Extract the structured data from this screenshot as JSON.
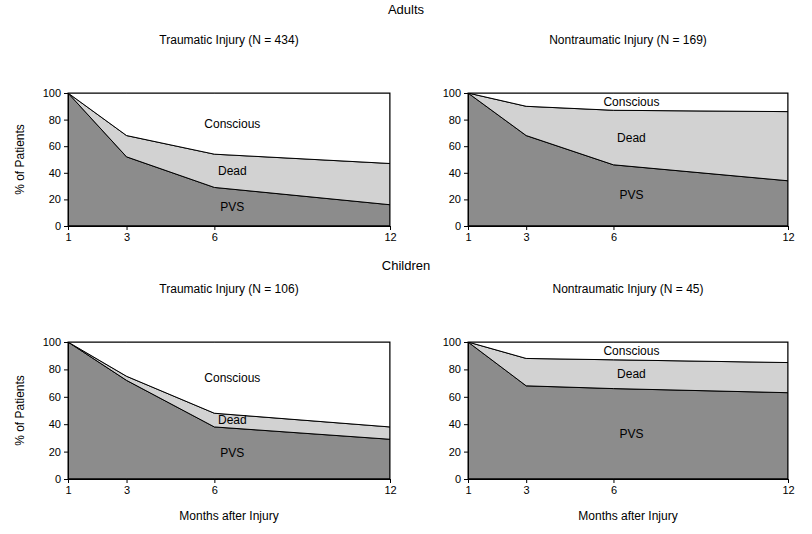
{
  "row_titles": [
    "Adults",
    "Children"
  ],
  "chart_data": [
    {
      "type": "area",
      "stacked": true,
      "title": "Traumatic Injury (N = 434)",
      "ylabel": "% of Patients",
      "x": [
        1,
        3,
        6,
        12
      ],
      "xlim": [
        1,
        12
      ],
      "xticks": [
        1,
        3,
        6,
        12
      ],
      "ylim": [
        0,
        100
      ],
      "yticks": [
        0,
        20,
        40,
        60,
        80,
        100
      ],
      "series": [
        {
          "name": "PVS",
          "color": "#8c8c8c",
          "values": [
            100,
            52,
            29,
            16
          ]
        },
        {
          "name": "Dead",
          "color": "#d2d2d2",
          "values": [
            0,
            16,
            25,
            31
          ]
        },
        {
          "name": "Conscious",
          "color": "#ffffff",
          "values": [
            0,
            32,
            46,
            53
          ]
        }
      ]
    },
    {
      "type": "area",
      "stacked": true,
      "title": "Nontraumatic Injury (N = 169)",
      "x": [
        1,
        3,
        6,
        12
      ],
      "xlim": [
        1,
        12
      ],
      "xticks": [
        1,
        3,
        6,
        12
      ],
      "ylim": [
        0,
        100
      ],
      "yticks": [
        0,
        20,
        40,
        60,
        80,
        100
      ],
      "series": [
        {
          "name": "PVS",
          "color": "#8c8c8c",
          "values": [
            100,
            68,
            46,
            34
          ]
        },
        {
          "name": "Dead",
          "color": "#d2d2d2",
          "values": [
            0,
            22,
            41,
            52
          ]
        },
        {
          "name": "Conscious",
          "color": "#ffffff",
          "values": [
            0,
            10,
            13,
            14
          ]
        }
      ]
    },
    {
      "type": "area",
      "stacked": true,
      "title": "Traumatic Injury (N = 106)",
      "ylabel": "% of Patients",
      "xlabel": "Months after Injury",
      "x": [
        1,
        3,
        6,
        12
      ],
      "xlim": [
        1,
        12
      ],
      "xticks": [
        1,
        3,
        6,
        12
      ],
      "ylim": [
        0,
        100
      ],
      "yticks": [
        0,
        20,
        40,
        60,
        80,
        100
      ],
      "series": [
        {
          "name": "PVS",
          "color": "#8c8c8c",
          "values": [
            100,
            72,
            38,
            29
          ]
        },
        {
          "name": "Dead",
          "color": "#d2d2d2",
          "values": [
            0,
            3,
            10,
            9
          ]
        },
        {
          "name": "Conscious",
          "color": "#ffffff",
          "values": [
            0,
            25,
            52,
            62
          ]
        }
      ]
    },
    {
      "type": "area",
      "stacked": true,
      "title": "Nontraumatic Injury (N = 45)",
      "xlabel": "Months after Injury",
      "x": [
        1,
        3,
        6,
        12
      ],
      "xlim": [
        1,
        12
      ],
      "xticks": [
        1,
        3,
        6,
        12
      ],
      "ylim": [
        0,
        100
      ],
      "yticks": [
        0,
        20,
        40,
        60,
        80,
        100
      ],
      "series": [
        {
          "name": "PVS",
          "color": "#8c8c8c",
          "values": [
            100,
            68,
            66,
            63
          ]
        },
        {
          "name": "Dead",
          "color": "#d2d2d2",
          "values": [
            0,
            20,
            21,
            22
          ]
        },
        {
          "name": "Conscious",
          "color": "#ffffff",
          "values": [
            0,
            12,
            13,
            15
          ]
        }
      ]
    }
  ]
}
